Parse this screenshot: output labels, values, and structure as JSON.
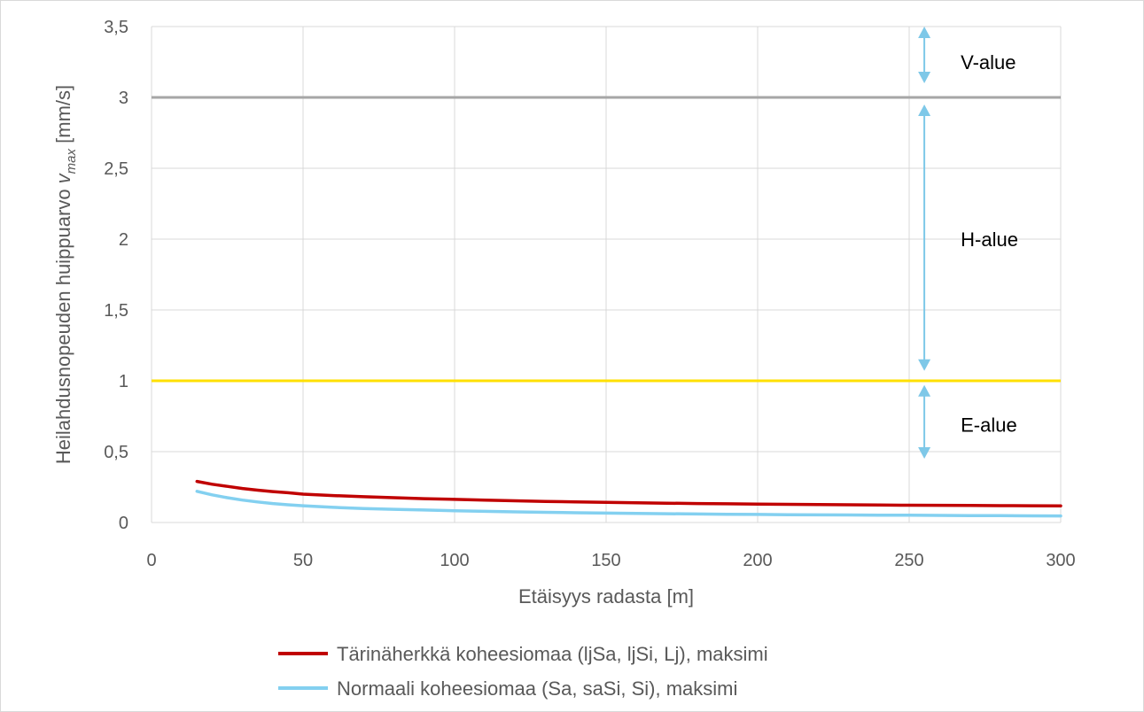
{
  "chart_data": {
    "type": "line",
    "xlabel": "Etäisyys radasta [m]",
    "ylabel_parts": {
      "prefix": "Heilahdusnopeuden huippuarvo ",
      "var": "v",
      "sub": "max",
      "suffix": " [mm/s]"
    },
    "xlim": [
      0,
      300
    ],
    "ylim": [
      0,
      3.5
    ],
    "x_ticks": [
      {
        "value": 0,
        "label": "0"
      },
      {
        "value": 50,
        "label": "50"
      },
      {
        "value": 100,
        "label": "100"
      },
      {
        "value": 150,
        "label": "150"
      },
      {
        "value": 200,
        "label": "200"
      },
      {
        "value": 250,
        "label": "250"
      },
      {
        "value": 300,
        "label": "300"
      }
    ],
    "y_ticks": [
      {
        "value": 0,
        "label": "0"
      },
      {
        "value": 0.5,
        "label": "0,5"
      },
      {
        "value": 1,
        "label": "1"
      },
      {
        "value": 1.5,
        "label": "1,5"
      },
      {
        "value": 2,
        "label": "2"
      },
      {
        "value": 2.5,
        "label": "2,5"
      },
      {
        "value": 3,
        "label": "3"
      },
      {
        "value": 3.5,
        "label": "3,5"
      }
    ],
    "grid": true,
    "reference_lines": [
      {
        "y": 3,
        "color": "#a6a6a6"
      },
      {
        "y": 1,
        "color": "#ffe000"
      }
    ],
    "zone_arrows": {
      "x": 255,
      "color": "#7ec8e8",
      "segments": [
        {
          "from": 3.1,
          "to": 3.5
        },
        {
          "from": 1.07,
          "to": 2.95
        },
        {
          "from": 0.45,
          "to": 0.97
        }
      ]
    },
    "zone_labels": [
      {
        "text": "V-alue",
        "x": 267,
        "y": 3.25
      },
      {
        "text": "H-alue",
        "x": 267,
        "y": 2.0
      },
      {
        "text": "E-alue",
        "x": 267,
        "y": 0.69
      }
    ],
    "series": [
      {
        "name": "Tärinäherkkä koheesiomaa (ljSa, ljSi, Lj), maksimi",
        "color": "#c00000",
        "x": [
          15,
          20,
          25,
          30,
          35,
          40,
          45,
          50,
          60,
          70,
          80,
          90,
          100,
          110,
          120,
          130,
          140,
          150,
          160,
          170,
          180,
          190,
          200,
          210,
          220,
          230,
          240,
          250,
          260,
          270,
          280,
          290,
          300
        ],
        "y": [
          0.29,
          0.27,
          0.255,
          0.24,
          0.228,
          0.218,
          0.21,
          0.2,
          0.19,
          0.182,
          0.175,
          0.168,
          0.163,
          0.158,
          0.153,
          0.149,
          0.145,
          0.142,
          0.139,
          0.136,
          0.134,
          0.132,
          0.13,
          0.128,
          0.126,
          0.125,
          0.123,
          0.122,
          0.121,
          0.12,
          0.119,
          0.118,
          0.117
        ]
      },
      {
        "name": "Normaali koheesiomaa (Sa, saSi, Si), maksimi",
        "color": "#83d0f0",
        "x": [
          15,
          20,
          25,
          30,
          35,
          40,
          45,
          50,
          60,
          70,
          80,
          90,
          100,
          110,
          120,
          130,
          140,
          150,
          160,
          170,
          180,
          190,
          200,
          210,
          220,
          230,
          240,
          250,
          260,
          270,
          280,
          290,
          300
        ],
        "y": [
          0.22,
          0.195,
          0.175,
          0.158,
          0.145,
          0.134,
          0.125,
          0.118,
          0.107,
          0.099,
          0.093,
          0.088,
          0.083,
          0.079,
          0.075,
          0.072,
          0.069,
          0.066,
          0.064,
          0.062,
          0.06,
          0.058,
          0.057,
          0.055,
          0.054,
          0.053,
          0.052,
          0.051,
          0.05,
          0.049,
          0.048,
          0.047,
          0.046
        ]
      }
    ]
  }
}
